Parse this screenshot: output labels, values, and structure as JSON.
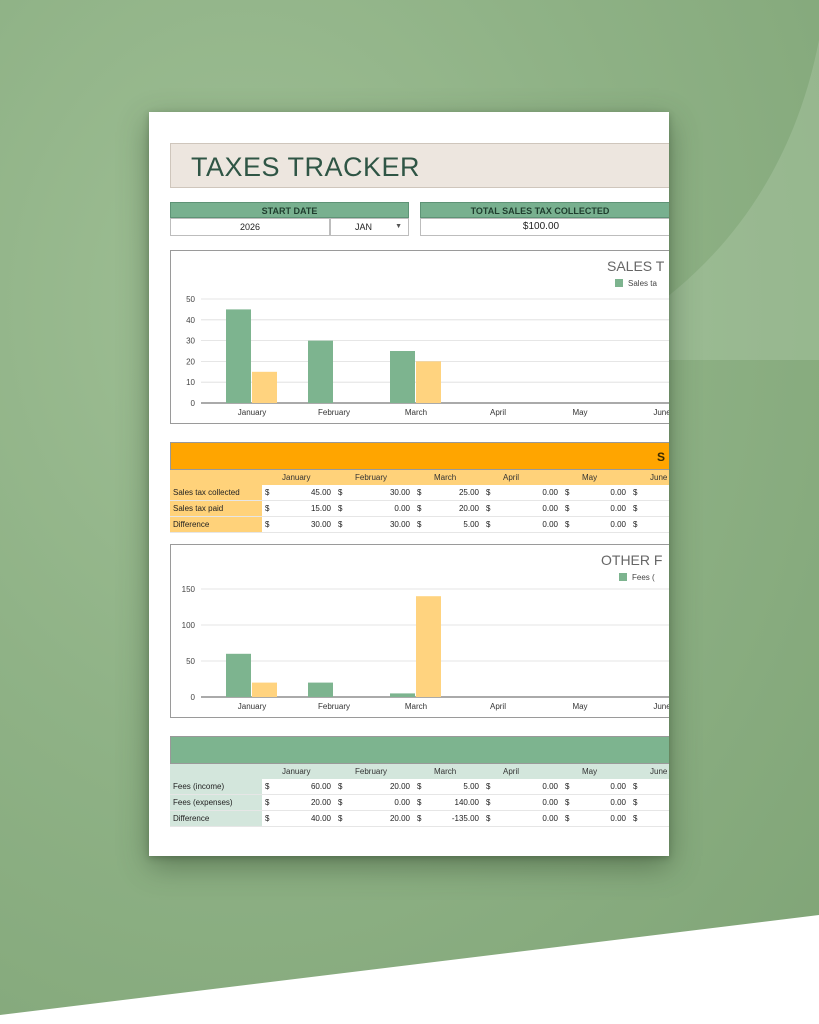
{
  "title": "TAXES TRACKER",
  "start_date": {
    "label": "START DATE",
    "year": "2026",
    "month": "JAN"
  },
  "total_collected": {
    "label": "TOTAL SALES TAX COLLECTED",
    "value": "$100.00"
  },
  "months": [
    "January",
    "February",
    "March",
    "April",
    "May",
    "June"
  ],
  "currency": "$",
  "colors": {
    "green": "#7db48f",
    "yellow": "#ffd37f",
    "orange": "#ffa500",
    "sage": "#d3e6dc",
    "orange_light": "#ffd27a"
  },
  "chart_data": [
    {
      "type": "bar",
      "title": "SALES T",
      "categories": [
        "January",
        "February",
        "March",
        "April",
        "May",
        "June"
      ],
      "series": [
        {
          "name": "Sales ta",
          "values": [
            45,
            30,
            25,
            0,
            0,
            0
          ]
        },
        {
          "values": [
            15,
            0,
            20,
            0,
            0,
            0
          ]
        }
      ],
      "ylim": [
        0,
        50
      ],
      "yticks": [
        0,
        10,
        20,
        30,
        40,
        50
      ],
      "grid": true,
      "legend": "top-right"
    },
    {
      "type": "bar",
      "title": "OTHER F",
      "categories": [
        "January",
        "February",
        "March",
        "April",
        "May",
        "June"
      ],
      "series": [
        {
          "name": "Fees (",
          "values": [
            60,
            20,
            5,
            0,
            0,
            0
          ]
        },
        {
          "values": [
            20,
            0,
            140,
            0,
            0,
            0
          ]
        }
      ],
      "ylim": [
        0,
        150
      ],
      "yticks": [
        0,
        50,
        100,
        150
      ],
      "grid": true,
      "legend": "top-right"
    }
  ],
  "sales_table": {
    "title": "S",
    "rows": [
      {
        "label": "Sales tax collected",
        "values": [
          "45.00",
          "30.00",
          "25.00",
          "0.00",
          "0.00"
        ]
      },
      {
        "label": "Sales tax paid",
        "values": [
          "15.00",
          "0.00",
          "20.00",
          "0.00",
          "0.00"
        ]
      },
      {
        "label": "Difference",
        "values": [
          "30.00",
          "30.00",
          "5.00",
          "0.00",
          "0.00"
        ]
      }
    ]
  },
  "fees_table": {
    "rows": [
      {
        "label": "Fees (income)",
        "values": [
          "60.00",
          "20.00",
          "5.00",
          "0.00",
          "0.00"
        ]
      },
      {
        "label": "Fees (expenses)",
        "values": [
          "20.00",
          "0.00",
          "140.00",
          "0.00",
          "0.00"
        ]
      },
      {
        "label": "Difference",
        "values": [
          "40.00",
          "20.00",
          "-135.00",
          "0.00",
          "0.00"
        ]
      }
    ]
  }
}
